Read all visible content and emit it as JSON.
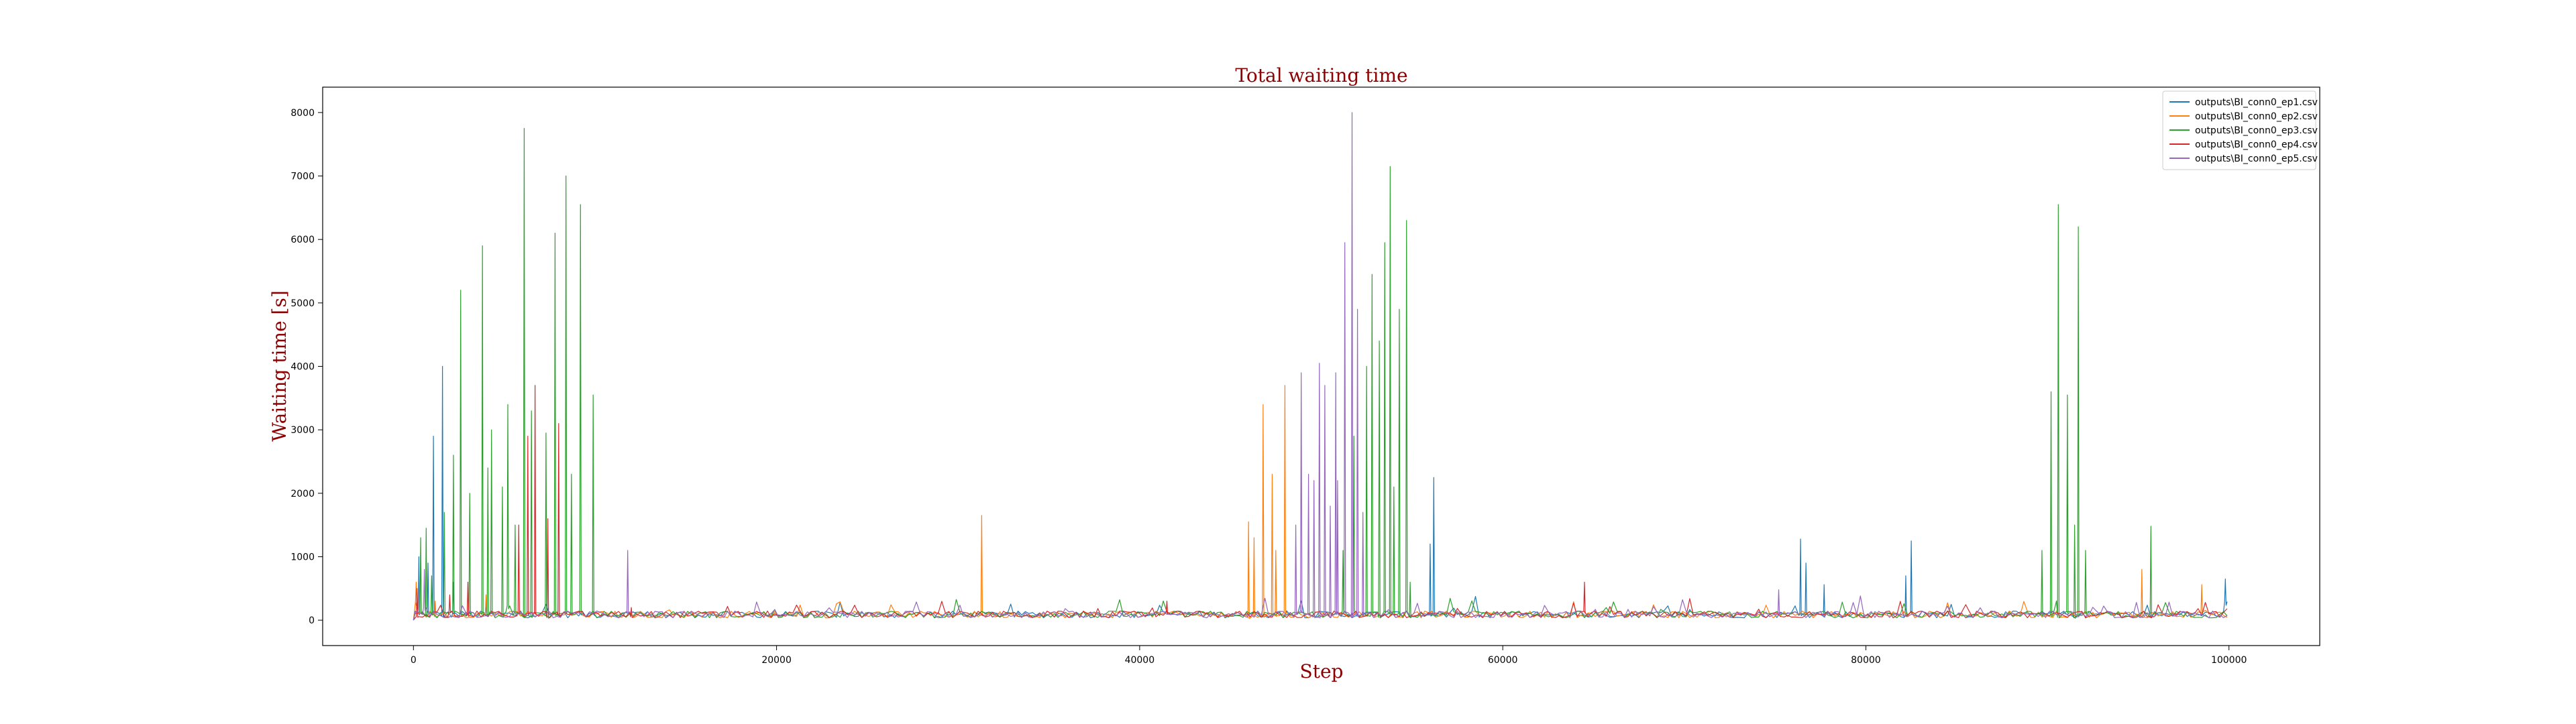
{
  "chart_data": {
    "type": "line",
    "title": "Total waiting time",
    "xlabel": "Step",
    "ylabel": "Waiting time [s]",
    "xlim": [
      -5000,
      105000
    ],
    "ylim": [
      -400,
      8400
    ],
    "xticks": [
      0,
      20000,
      40000,
      60000,
      80000,
      100000
    ],
    "yticks": [
      0,
      1000,
      2000,
      3000,
      4000,
      5000,
      6000,
      7000,
      8000
    ],
    "grid": false,
    "legend_position": "top-right",
    "baseline": 120,
    "series": [
      {
        "name": "outputs\\BI_conn0_ep1.csv",
        "color": "#1f77b4",
        "peaks": [
          [
            300,
            1000
          ],
          [
            800,
            900
          ],
          [
            1100,
            2900
          ],
          [
            1600,
            4000
          ],
          [
            2200,
            600
          ],
          [
            4000,
            300
          ],
          [
            56000,
            1200
          ],
          [
            56200,
            2250
          ],
          [
            76400,
            1280
          ],
          [
            76700,
            900
          ],
          [
            77700,
            560
          ],
          [
            82200,
            700
          ],
          [
            82500,
            1250
          ],
          [
            99800,
            650
          ]
        ]
      },
      {
        "name": "outputs\\BI_conn0_ep2.csv",
        "color": "#ff7f0e",
        "peaks": [
          [
            150,
            600
          ],
          [
            1200,
            300
          ],
          [
            4000,
            400
          ],
          [
            31300,
            1650
          ],
          [
            46000,
            1550
          ],
          [
            46300,
            1300
          ],
          [
            46800,
            3400
          ],
          [
            47300,
            2300
          ],
          [
            47500,
            1100
          ],
          [
            48000,
            3700
          ],
          [
            95200,
            800
          ],
          [
            98500,
            560
          ]
        ]
      },
      {
        "name": "outputs\\BI_conn0_ep3.csv",
        "color": "#2ca02c",
        "peaks": [
          [
            400,
            1300
          ],
          [
            700,
            1450
          ],
          [
            1000,
            700
          ],
          [
            1700,
            1700
          ],
          [
            2200,
            2600
          ],
          [
            2600,
            5200
          ],
          [
            3100,
            2000
          ],
          [
            3800,
            5900
          ],
          [
            4100,
            2400
          ],
          [
            4300,
            3000
          ],
          [
            4900,
            2100
          ],
          [
            5200,
            3400
          ],
          [
            5600,
            1500
          ],
          [
            6100,
            7750
          ],
          [
            6500,
            3300
          ],
          [
            7300,
            2950
          ],
          [
            7800,
            6100
          ],
          [
            8400,
            7000
          ],
          [
            8700,
            2300
          ],
          [
            9200,
            6550
          ],
          [
            9900,
            3550
          ],
          [
            51200,
            1100
          ],
          [
            51800,
            2900
          ],
          [
            52500,
            4000
          ],
          [
            52800,
            5450
          ],
          [
            53200,
            4400
          ],
          [
            53500,
            5950
          ],
          [
            53800,
            7150
          ],
          [
            54000,
            2100
          ],
          [
            54300,
            4900
          ],
          [
            54700,
            6300
          ],
          [
            54900,
            600
          ],
          [
            89700,
            1100
          ],
          [
            90200,
            3600
          ],
          [
            90600,
            6550
          ],
          [
            91100,
            3550
          ],
          [
            91500,
            1500
          ],
          [
            91700,
            6200
          ],
          [
            92100,
            1100
          ],
          [
            95700,
            1480
          ]
        ]
      },
      {
        "name": "outputs\\BI_conn0_ep4.csv",
        "color": "#d62728",
        "peaks": [
          [
            200,
            500
          ],
          [
            2000,
            400
          ],
          [
            3000,
            600
          ],
          [
            5800,
            1500
          ],
          [
            6300,
            2900
          ],
          [
            6700,
            3700
          ],
          [
            7400,
            1600
          ],
          [
            8000,
            3100
          ],
          [
            12000,
            200
          ],
          [
            41500,
            300
          ],
          [
            64500,
            600
          ]
        ]
      },
      {
        "name": "outputs\\BI_conn0_ep5.csv",
        "color": "#9467bd",
        "peaks": [
          [
            600,
            800
          ],
          [
            11800,
            1100
          ],
          [
            48600,
            1500
          ],
          [
            48900,
            3900
          ],
          [
            49300,
            2300
          ],
          [
            49600,
            2200
          ],
          [
            49900,
            4050
          ],
          [
            50200,
            3700
          ],
          [
            50500,
            1800
          ],
          [
            50800,
            3900
          ],
          [
            50900,
            2200
          ],
          [
            51300,
            5950
          ],
          [
            51700,
            8000
          ],
          [
            52000,
            4900
          ],
          [
            52300,
            1700
          ],
          [
            75200,
            480
          ]
        ]
      }
    ]
  }
}
